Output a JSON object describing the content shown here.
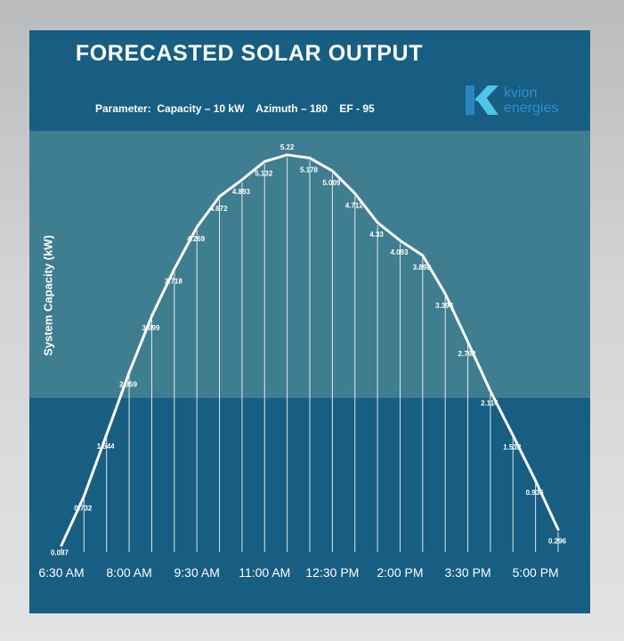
{
  "header": {
    "title": "FORECASTED SOLAR OUTPUT",
    "parameters": "Parameter:  Capacity – 10 kW    Azimuth – 180    EF - 95"
  },
  "logo": {
    "line1": "kvion",
    "line2": "energies",
    "colors": {
      "mark_left": "#2d86c4",
      "mark_right": "#4ec6e8",
      "text": "#2d8fd0"
    }
  },
  "colors": {
    "background": "#175e82",
    "band": "#3f7d90",
    "line": "#ffffff",
    "page": "#cfd1d3"
  },
  "chart_data": {
    "type": "line",
    "title": "FORECASTED SOLAR OUTPUT",
    "ylabel": "System Capacity (kW)",
    "xlabel": "",
    "x": [
      "6:30 AM",
      "7:00 AM",
      "7:30 AM",
      "8:00 AM",
      "8:30 AM",
      "9:00 AM",
      "9:30 AM",
      "10:00 AM",
      "10:30 AM",
      "11:00 AM",
      "11:30 AM",
      "12:00 PM",
      "12:30 PM",
      "1:00 PM",
      "1:30 PM",
      "2:00 PM",
      "2:30 PM",
      "3:00 PM",
      "3:30 PM",
      "4:00 PM",
      "4:30 PM",
      "5:00 PM",
      "5:30 PM"
    ],
    "tick_labels": [
      "6:30 AM",
      "8:00 AM",
      "9:30 AM",
      "11:00 AM",
      "12:30 PM",
      "2:00 PM",
      "3:30 PM",
      "5:00 PM"
    ],
    "values": [
      0.087,
      0.732,
      1.544,
      2.359,
      3.099,
      3.718,
      4.269,
      4.672,
      4.893,
      5.132,
      5.22,
      5.178,
      5.009,
      4.712,
      4.33,
      4.093,
      3.898,
      3.394,
      2.762,
      2.114,
      1.532,
      0.936,
      0.296
    ],
    "value_labels": [
      "0.087",
      "0.732",
      "1.544",
      "2.359",
      "3.099",
      "3.718",
      "4.269",
      "4.672",
      "4.893",
      "5.132",
      "5.22",
      "5.178",
      "5.009",
      "4.712",
      "4.33",
      "4.093",
      "3.898",
      "3.394",
      "2.762",
      "2.114",
      "1.532",
      "0.936",
      "0.296"
    ],
    "ylim": [
      0,
      5.5
    ],
    "drop_lines": true,
    "grid": false,
    "legend": "none"
  }
}
